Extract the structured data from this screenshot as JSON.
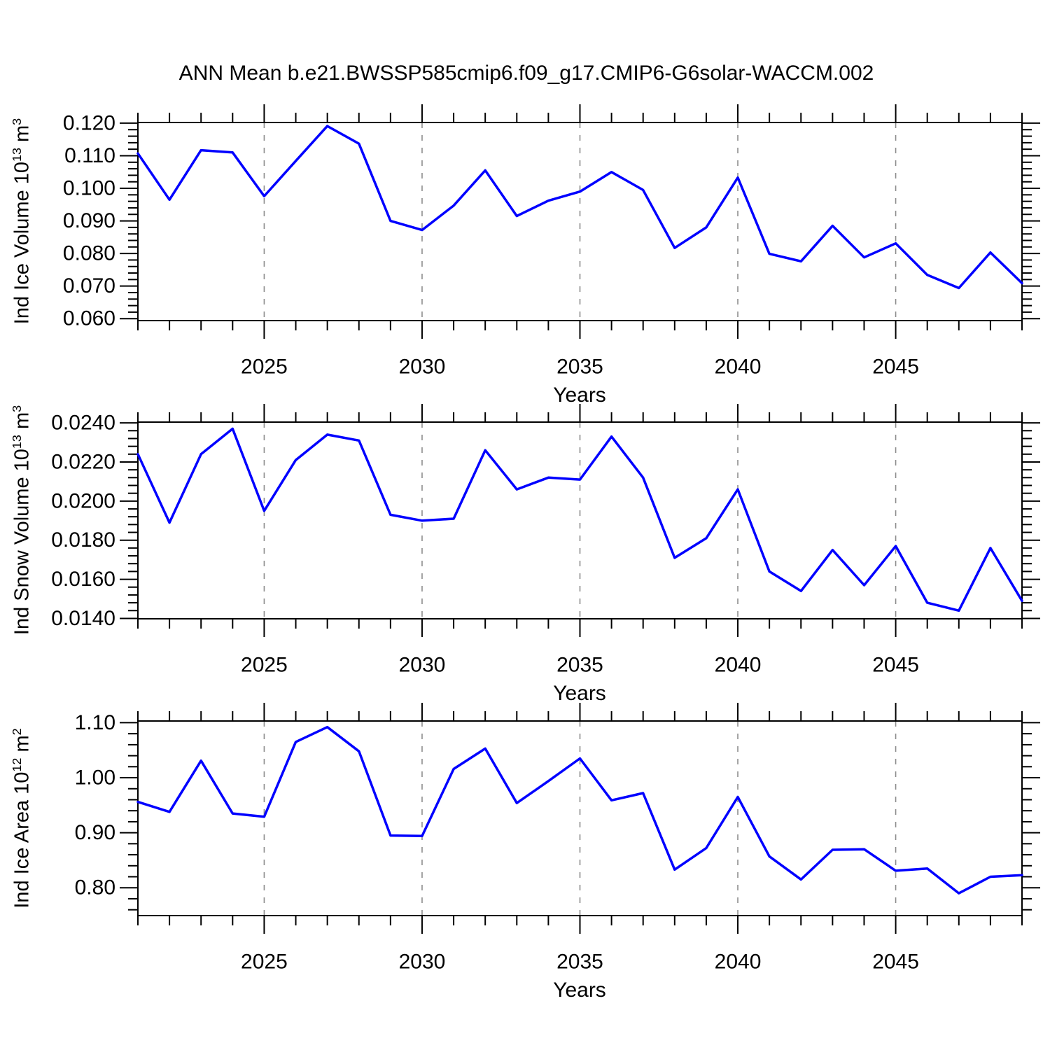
{
  "title": "ANN Mean b.e21.BWSSP585cmip6.f09_g17.CMIP6-G6solar-WACCM.002",
  "colors": {
    "line": "#0000ff",
    "axis": "#000000",
    "grid": "#8c8c8c",
    "background": "#ffffff",
    "text": "#000000"
  },
  "x_axis": {
    "label": "Years",
    "range": [
      2021,
      2049
    ],
    "major_ticks": [
      2025,
      2030,
      2035,
      2040,
      2045
    ],
    "tick_labels": [
      "2025",
      "2030",
      "2035",
      "2040",
      "2045"
    ],
    "minor_step": 1,
    "gridlines": [
      2025,
      2030,
      2035,
      2040,
      2045
    ],
    "grid_style": "dashed"
  },
  "chart_data": [
    {
      "type": "line",
      "name": "ice-volume",
      "xlabel": "Years",
      "ylabel": "Ind Ice Volume 10^13 m^3",
      "ylabel_parts": [
        {
          "text": "Ind Ice Volume 10"
        },
        {
          "text": "13",
          "sup": true
        },
        {
          "text": " m"
        },
        {
          "text": "3",
          "sup": true
        }
      ],
      "x": [
        2021,
        2022,
        2023,
        2024,
        2025,
        2026,
        2027,
        2028,
        2029,
        2030,
        2031,
        2032,
        2033,
        2034,
        2035,
        2036,
        2037,
        2038,
        2039,
        2040,
        2041,
        2042,
        2043,
        2044,
        2045,
        2046,
        2047,
        2048,
        2049
      ],
      "series": [
        {
          "name": "Ind Ice Volume",
          "values": [
            0.1107,
            0.0965,
            0.1117,
            0.111,
            0.0976,
            0.1084,
            0.1191,
            0.1137,
            0.09,
            0.0872,
            0.0947,
            0.1055,
            0.0915,
            0.0962,
            0.099,
            0.105,
            0.0995,
            0.0817,
            0.088,
            0.1033,
            0.0799,
            0.0776,
            0.0885,
            0.0788,
            0.0831,
            0.0734,
            0.0694,
            0.0803,
            0.0709
          ]
        }
      ],
      "ylim": [
        0.0594,
        0.1202
      ],
      "ytick_values": [
        0.06,
        0.07,
        0.08,
        0.09,
        0.1,
        0.11,
        0.12
      ],
      "ytick_labels": [
        "0.060",
        "0.070",
        "0.080",
        "0.090",
        "0.100",
        "0.110",
        "0.120"
      ],
      "y_minor_step": 0.002,
      "grid": true,
      "legend": "none"
    },
    {
      "type": "line",
      "name": "snow-volume",
      "xlabel": "Years",
      "ylabel": "Ind Snow Volume 10^13 m^3",
      "ylabel_parts": [
        {
          "text": "Ind Snow Volume 10"
        },
        {
          "text": "13",
          "sup": true
        },
        {
          "text": " m"
        },
        {
          "text": "3",
          "sup": true
        }
      ],
      "x": [
        2021,
        2022,
        2023,
        2024,
        2025,
        2026,
        2027,
        2028,
        2029,
        2030,
        2031,
        2032,
        2033,
        2034,
        2035,
        2036,
        2037,
        2038,
        2039,
        2040,
        2041,
        2042,
        2043,
        2044,
        2045,
        2046,
        2047,
        2048,
        2049
      ],
      "series": [
        {
          "name": "Ind Snow Volume",
          "values": [
            0.0224,
            0.0189,
            0.0224,
            0.0237,
            0.0195,
            0.0221,
            0.0234,
            0.0231,
            0.0193,
            0.019,
            0.0191,
            0.0226,
            0.0206,
            0.0212,
            0.0211,
            0.0233,
            0.0212,
            0.0171,
            0.0181,
            0.0206,
            0.0164,
            0.0154,
            0.0175,
            0.0157,
            0.0177,
            0.0148,
            0.0144,
            0.0176,
            0.0149
          ]
        }
      ],
      "ylim": [
        0.01398,
        0.02404
      ],
      "ytick_values": [
        0.014,
        0.016,
        0.018,
        0.02,
        0.022,
        0.024
      ],
      "ytick_labels": [
        "0.0140",
        "0.0160",
        "0.0180",
        "0.0200",
        "0.0220",
        "0.0240"
      ],
      "y_minor_step": 0.0004,
      "grid": true,
      "legend": "none"
    },
    {
      "type": "line",
      "name": "ice-area",
      "xlabel": "Years",
      "ylabel": "Ind Ice Area 10^12 m^2",
      "ylabel_parts": [
        {
          "text": "Ind Ice Area 10"
        },
        {
          "text": "12",
          "sup": true
        },
        {
          "text": " m"
        },
        {
          "text": "2",
          "sup": true
        }
      ],
      "x": [
        2021,
        2022,
        2023,
        2024,
        2025,
        2026,
        2027,
        2028,
        2029,
        2030,
        2031,
        2032,
        2033,
        2034,
        2035,
        2036,
        2037,
        2038,
        2039,
        2040,
        2041,
        2042,
        2043,
        2044,
        2045,
        2046,
        2047,
        2048,
        2049
      ],
      "series": [
        {
          "name": "Ind Ice Area",
          "values": [
            0.956,
            0.938,
            1.031,
            0.935,
            0.929,
            1.065,
            1.092,
            1.048,
            0.895,
            0.894,
            1.016,
            1.053,
            0.954,
            0.994,
            1.035,
            0.959,
            0.972,
            0.833,
            0.872,
            0.965,
            0.857,
            0.815,
            0.869,
            0.87,
            0.831,
            0.835,
            0.79,
            0.82,
            0.823
          ]
        }
      ],
      "ylim": [
        0.7494,
        1.1031
      ],
      "ytick_values": [
        0.8,
        0.9,
        1.0,
        1.1
      ],
      "ytick_labels": [
        "0.80",
        "0.90",
        "1.00",
        "1.10"
      ],
      "y_minor_step": 0.02,
      "grid": true,
      "legend": "none"
    }
  ]
}
